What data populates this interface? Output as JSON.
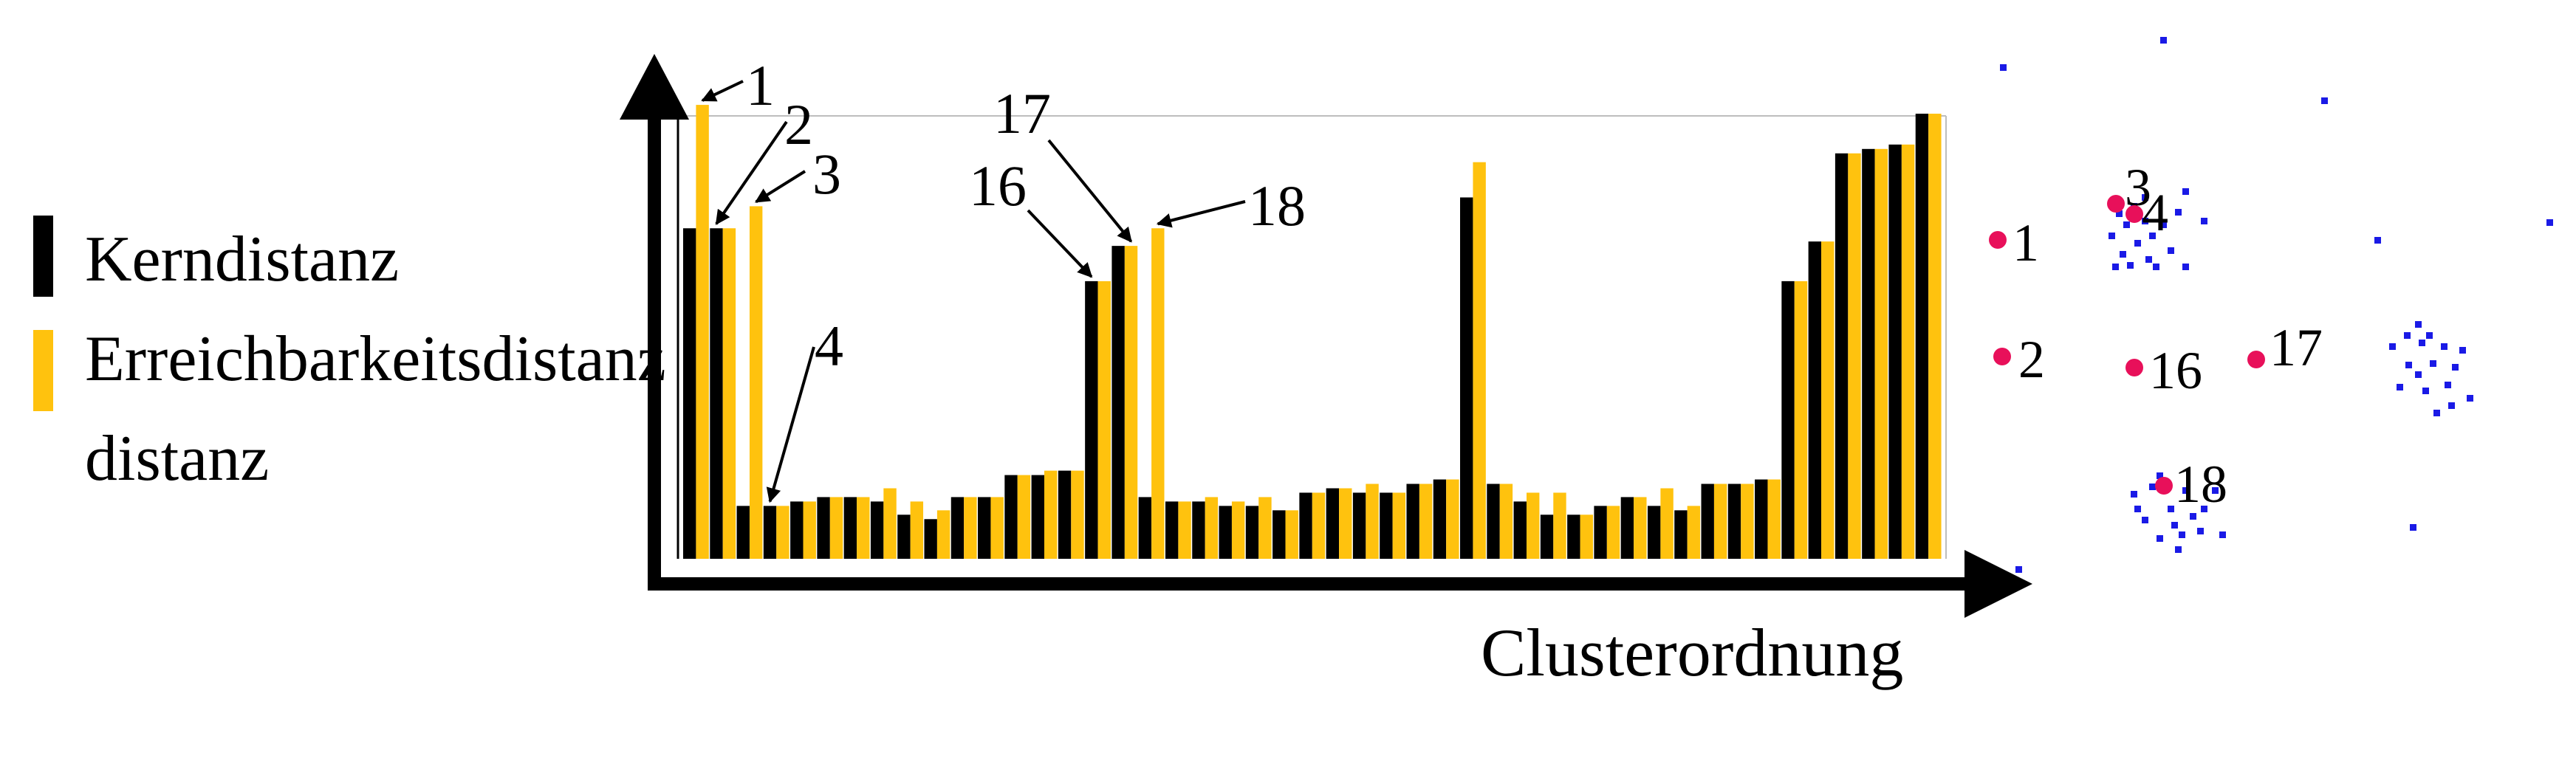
{
  "chart_data": {
    "type": "bar",
    "xlabel": "Clusterordnung",
    "ylabel": "",
    "ylim": [
      0,
      1
    ],
    "legend_position": "left",
    "series": [
      {
        "name": "Kerndistanz",
        "color": "#000000",
        "values": [
          0.75,
          0.75,
          0.12,
          0.12,
          0.13,
          0.14,
          0.14,
          0.13,
          0.1,
          0.09,
          0.14,
          0.14,
          0.19,
          0.19,
          0.2,
          0.63,
          0.71,
          0.14,
          0.13,
          0.13,
          0.12,
          0.12,
          0.11,
          0.15,
          0.16,
          0.15,
          0.15,
          0.17,
          0.18,
          0.82,
          0.17,
          0.13,
          0.1,
          0.1,
          0.12,
          0.14,
          0.12,
          0.11,
          0.17,
          0.17,
          0.18,
          0.63,
          0.72,
          0.92,
          0.93,
          0.94,
          1.01
        ]
      },
      {
        "name": "Erreichbarkeitsdistanz",
        "color": "#FFC20E",
        "values": [
          1.03,
          0.75,
          0.8,
          0.12,
          0.13,
          0.14,
          0.14,
          0.16,
          0.13,
          0.11,
          0.14,
          0.14,
          0.19,
          0.2,
          0.2,
          0.63,
          0.71,
          0.75,
          0.13,
          0.14,
          0.13,
          0.14,
          0.11,
          0.15,
          0.16,
          0.17,
          0.15,
          0.17,
          0.18,
          0.9,
          0.17,
          0.15,
          0.15,
          0.1,
          0.12,
          0.14,
          0.16,
          0.12,
          0.17,
          0.17,
          0.18,
          0.63,
          0.72,
          0.92,
          0.93,
          0.94,
          1.01
        ]
      }
    ],
    "annotations": [
      {
        "label": "1",
        "bar_index": 0
      },
      {
        "label": "2",
        "bar_index": 1
      },
      {
        "label": "3",
        "bar_index": 2
      },
      {
        "label": "4",
        "bar_index": 3
      },
      {
        "label": "16",
        "bar_index": 15
      },
      {
        "label": "17",
        "bar_index": 16
      },
      {
        "label": "18",
        "bar_index": 17
      }
    ]
  },
  "scatter_data": {
    "type": "scatter",
    "labeled_point_color": "#E8105A",
    "cluster_point_color": "#1A1AE6",
    "labeled_points": [
      {
        "label": "1",
        "x": 2705,
        "y": 325
      },
      {
        "label": "2",
        "x": 2711,
        "y": 483
      },
      {
        "label": "3",
        "x": 2865,
        "y": 276
      },
      {
        "label": "4",
        "x": 2890,
        "y": 290
      },
      {
        "label": "16",
        "x": 2890,
        "y": 498
      },
      {
        "label": "17",
        "x": 3055,
        "y": 487
      },
      {
        "label": "18",
        "x": 2930,
        "y": 658
      }
    ],
    "cluster_points": [
      [
        2713,
        92
      ],
      [
        2930,
        55
      ],
      [
        3148,
        137
      ],
      [
        3220,
        326
      ],
      [
        3453,
        302
      ],
      [
        2734,
        772
      ],
      [
        3268,
        715
      ],
      [
        2870,
        290
      ],
      [
        2890,
        280
      ],
      [
        2905,
        300
      ],
      [
        2880,
        305
      ],
      [
        2915,
        320
      ],
      [
        2860,
        320
      ],
      [
        2895,
        330
      ],
      [
        2875,
        345
      ],
      [
        2910,
        352
      ],
      [
        2885,
        360
      ],
      [
        2920,
        362
      ],
      [
        2865,
        362
      ],
      [
        2950,
        288
      ],
      [
        2985,
        300
      ],
      [
        2940,
        340
      ],
      [
        2960,
        362
      ],
      [
        2905,
        268
      ],
      [
        2960,
        260
      ],
      [
        2930,
        305
      ],
      [
        3240,
        470
      ],
      [
        3275,
        440
      ],
      [
        3290,
        455
      ],
      [
        3310,
        470
      ],
      [
        3262,
        495
      ],
      [
        3295,
        493
      ],
      [
        3325,
        498
      ],
      [
        3250,
        525
      ],
      [
        3285,
        530
      ],
      [
        3315,
        522
      ],
      [
        3345,
        540
      ],
      [
        3300,
        560
      ],
      [
        3275,
        508
      ],
      [
        3320,
        550
      ],
      [
        3280,
        465
      ],
      [
        3335,
        475
      ],
      [
        3260,
        455
      ],
      [
        2890,
        670
      ],
      [
        2925,
        645
      ],
      [
        2960,
        665
      ],
      [
        2985,
        690
      ],
      [
        2905,
        705
      ],
      [
        2945,
        712
      ],
      [
        2980,
        720
      ],
      [
        2925,
        730
      ],
      [
        2950,
        745
      ],
      [
        3010,
        725
      ],
      [
        2940,
        690
      ],
      [
        2970,
        700
      ],
      [
        2895,
        690
      ],
      [
        3000,
        665
      ],
      [
        2915,
        660
      ],
      [
        2955,
        725
      ]
    ]
  }
}
